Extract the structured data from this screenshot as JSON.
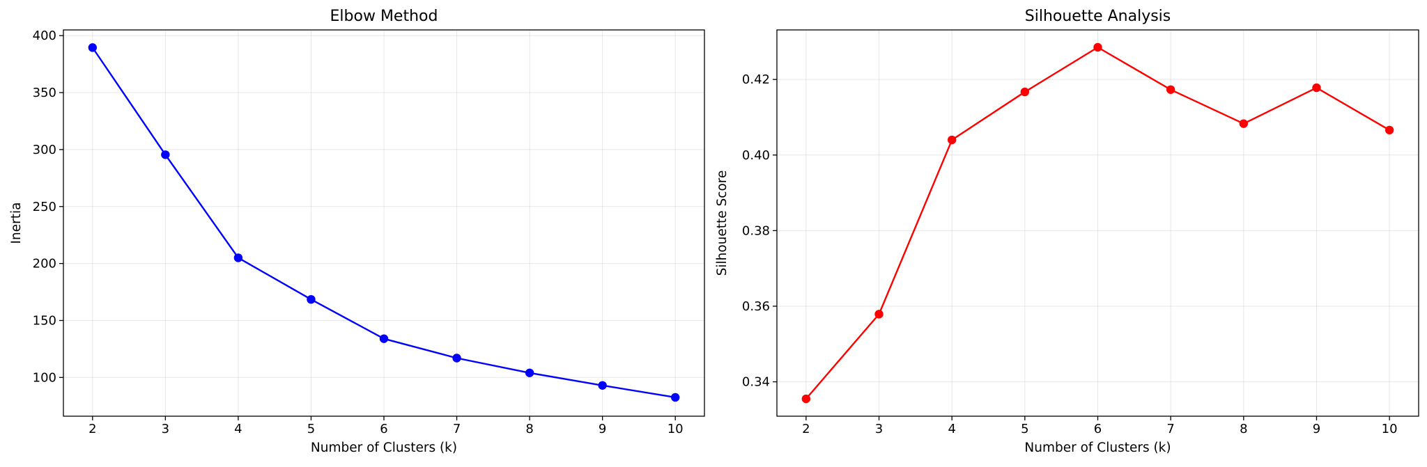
{
  "chart_data": [
    {
      "type": "line",
      "title": "Elbow Method",
      "xlabel": "Number of Clusters (k)",
      "ylabel": "Inertia",
      "x": [
        2,
        3,
        4,
        5,
        6,
        7,
        8,
        9,
        10
      ],
      "series": [
        {
          "values": [
            389.5,
            295.5,
            205.0,
            168.5,
            134.0,
            117.0,
            104.0,
            93.0,
            82.5
          ],
          "color": "#0000ff",
          "marker": "circle"
        }
      ],
      "xlim": [
        1.6,
        10.4
      ],
      "ylim": [
        66,
        405
      ],
      "xticks": [
        2,
        3,
        4,
        5,
        6,
        7,
        8,
        9,
        10
      ],
      "yticks": [
        100,
        150,
        200,
        250,
        300,
        350,
        400
      ],
      "ytick_decimals": 0,
      "grid": true
    },
    {
      "type": "line",
      "title": "Silhouette Analysis",
      "xlabel": "Number of Clusters (k)",
      "ylabel": "Silhouette Score",
      "x": [
        2,
        3,
        4,
        5,
        6,
        7,
        8,
        9,
        10
      ],
      "series": [
        {
          "values": [
            0.3355,
            0.3579,
            0.404,
            0.4167,
            0.4285,
            0.4173,
            0.4083,
            0.4178,
            0.4066
          ],
          "color": "#ff0000",
          "marker": "circle"
        }
      ],
      "xlim": [
        1.6,
        10.4
      ],
      "ylim": [
        0.3309,
        0.4331
      ],
      "xticks": [
        2,
        3,
        4,
        5,
        6,
        7,
        8,
        9,
        10
      ],
      "yticks": [
        0.34,
        0.36,
        0.38,
        0.4,
        0.42
      ],
      "ytick_decimals": 2,
      "grid": true
    }
  ]
}
